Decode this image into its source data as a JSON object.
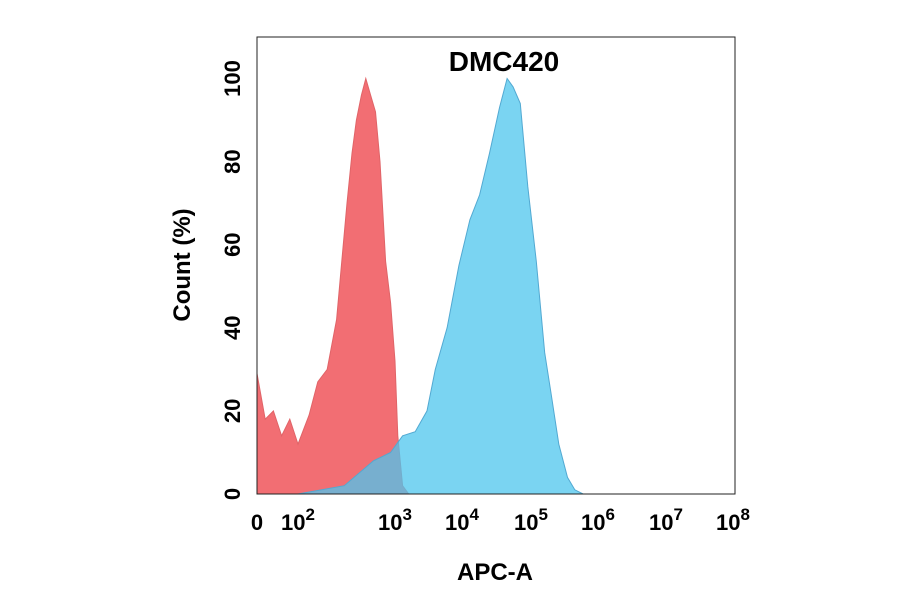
{
  "chart_data": {
    "type": "area",
    "title": "DMC420",
    "xlabel": "APC-A",
    "ylabel": "Count  (%)",
    "x_scale": "biexponential",
    "xlim": [
      0,
      100000000
    ],
    "ylim": [
      0,
      110
    ],
    "y_ticks": [
      "0",
      "20",
      "40",
      "60",
      "80",
      "100"
    ],
    "x_ticks": [
      {
        "base": "0",
        "exp": ""
      },
      {
        "base": "10",
        "exp": "2"
      },
      {
        "base": "10",
        "exp": "3"
      },
      {
        "base": "10",
        "exp": "4"
      },
      {
        "base": "10",
        "exp": "5"
      },
      {
        "base": "10",
        "exp": "6"
      },
      {
        "base": "10",
        "exp": "7"
      },
      {
        "base": "10",
        "exp": "8"
      }
    ],
    "grid": false,
    "legend": "none",
    "series": [
      {
        "color": "#f0555a",
        "stroke": "#e06468",
        "points": [
          [
            0,
            29
          ],
          [
            20,
            18
          ],
          [
            40,
            20
          ],
          [
            60,
            14
          ],
          [
            80,
            18
          ],
          [
            100,
            12
          ],
          [
            130,
            19
          ],
          [
            160,
            27
          ],
          [
            200,
            30
          ],
          [
            250,
            42
          ],
          [
            280,
            55
          ],
          [
            320,
            70
          ],
          [
            360,
            82
          ],
          [
            400,
            90
          ],
          [
            450,
            96
          ],
          [
            500,
            100
          ],
          [
            560,
            96
          ],
          [
            630,
            92
          ],
          [
            700,
            80
          ],
          [
            800,
            56
          ],
          [
            900,
            46
          ],
          [
            1000,
            32
          ],
          [
            1100,
            14
          ],
          [
            1300,
            2
          ],
          [
            1600,
            0
          ]
        ]
      },
      {
        "color": "#4ec6ee",
        "stroke": "#52a9d2",
        "points": [
          [
            100,
            0
          ],
          [
            300,
            2
          ],
          [
            600,
            8
          ],
          [
            900,
            10
          ],
          [
            1300,
            14
          ],
          [
            2000,
            15
          ],
          [
            3000,
            20
          ],
          [
            4000,
            30
          ],
          [
            6000,
            40
          ],
          [
            9000,
            55
          ],
          [
            13000,
            66
          ],
          [
            18000,
            72
          ],
          [
            25000,
            82
          ],
          [
            35000,
            93
          ],
          [
            45000,
            100
          ],
          [
            55000,
            98
          ],
          [
            70000,
            94
          ],
          [
            90000,
            74
          ],
          [
            120000,
            56
          ],
          [
            160000,
            34
          ],
          [
            200000,
            24
          ],
          [
            260000,
            12
          ],
          [
            350000,
            4
          ],
          [
            450000,
            1
          ],
          [
            600000,
            0
          ]
        ]
      }
    ]
  }
}
